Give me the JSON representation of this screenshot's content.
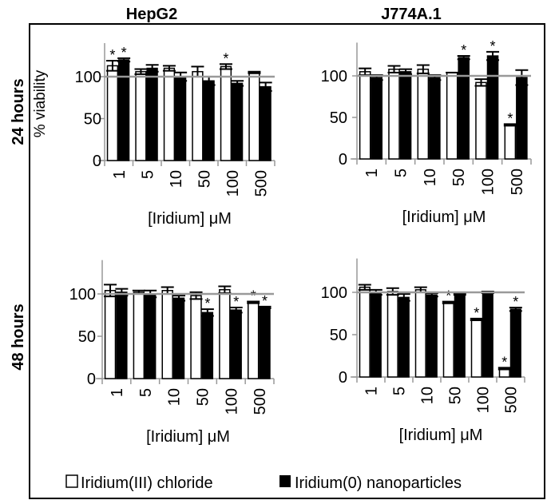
{
  "chart_data": {
    "type": "bar",
    "column_titles": [
      "HepG2",
      "J774A.1"
    ],
    "row_titles": [
      "24 hours",
      "48 hours"
    ],
    "ylabel": "% viability",
    "xlabel": "[Iridium] μM",
    "categories": [
      "1",
      "5",
      "10",
      "50",
      "100",
      "500"
    ],
    "yticks": [
      "0",
      "50",
      "100"
    ],
    "ylim": [
      0,
      140
    ],
    "reference_line": 100,
    "legend": {
      "placement": "bottom",
      "entries": [
        {
          "label": "Iridium(III) chloride",
          "color": "#ffffff"
        },
        {
          "label": "Iridium(0) nanoparticles",
          "color": "#000000"
        }
      ]
    },
    "panels": [
      {
        "cell_line": "HepG2",
        "time": "24 hours",
        "series": [
          {
            "name": "Iridium(III) chloride",
            "values": [
              113,
              106,
              110,
              106,
              112,
              105
            ],
            "errors": [
              6,
              3,
              3,
              6,
              3,
              1
            ],
            "significant": [
              true,
              false,
              false,
              false,
              true,
              false
            ]
          },
          {
            "name": "Iridium(0) nanoparticles",
            "values": [
              120,
              110,
              100,
              95,
              92,
              88
            ],
            "errors": [
              2,
              4,
              5,
              5,
              3,
              5
            ],
            "significant": [
              true,
              false,
              false,
              false,
              false,
              false
            ]
          }
        ]
      },
      {
        "cell_line": "J774A.1",
        "time": "24 hours",
        "series": [
          {
            "name": "Iridium(III) chloride",
            "values": [
              105,
              108,
              108,
              104,
              92,
              41
            ],
            "errors": [
              4,
              4,
              5,
              0,
              4,
              1
            ],
            "significant": [
              false,
              false,
              false,
              false,
              false,
              true
            ]
          },
          {
            "name": "Iridium(0) nanoparticles",
            "values": [
              98,
              105,
              98,
              122,
              124,
              98
            ],
            "errors": [
              3,
              3,
              3,
              2,
              5,
              9
            ],
            "significant": [
              false,
              false,
              false,
              true,
              true,
              false
            ]
          }
        ]
      },
      {
        "cell_line": "HepG2",
        "time": "48 hours",
        "series": [
          {
            "name": "Iridium(III) chloride",
            "values": [
              104,
              102,
              104,
              98,
              105,
              90
            ],
            "errors": [
              7,
              2,
              4,
              4,
              4,
              1
            ],
            "significant": [
              false,
              false,
              false,
              false,
              false,
              true
            ]
          },
          {
            "name": "Iridium(0) nanoparticles",
            "values": [
              102,
              100,
              95,
              78,
              81,
              84
            ],
            "errors": [
              4,
              4,
              3,
              4,
              3,
              1
            ],
            "significant": [
              false,
              false,
              false,
              true,
              true,
              true
            ]
          }
        ]
      },
      {
        "cell_line": "J774A.1",
        "time": "48 hours",
        "series": [
          {
            "name": "Iridium(III) chloride",
            "values": [
              106,
              101,
              103,
              88,
              68,
              10
            ],
            "errors": [
              3,
              4,
              3,
              1,
              1,
              1
            ],
            "significant": [
              false,
              false,
              false,
              true,
              true,
              true
            ]
          },
          {
            "name": "Iridium(0) nanoparticles",
            "values": [
              100,
              94,
              97,
              98,
              100,
              80
            ],
            "errors": [
              3,
              4,
              2,
              1,
              1,
              2
            ],
            "significant": [
              false,
              false,
              false,
              false,
              false,
              true
            ]
          }
        ]
      }
    ]
  }
}
